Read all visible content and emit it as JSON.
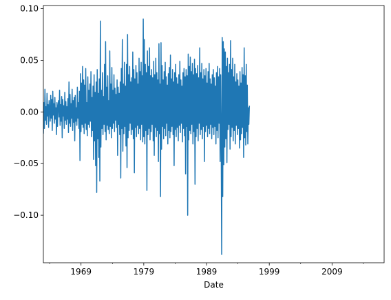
{
  "chart_data": {
    "type": "line",
    "title": "",
    "xlabel": "Date",
    "ylabel": "",
    "x_range": [
      1963.0,
      2017.3
    ],
    "ylim": [
      -0.146,
      0.103
    ],
    "x_ticks": [
      1969,
      1979,
      1989,
      1999,
      2009
    ],
    "x_tick_labels": [
      "1969",
      "1979",
      "1989",
      "1999",
      "2009"
    ],
    "y_ticks": [
      -0.1,
      -0.05,
      0.0,
      0.05,
      0.1
    ],
    "y_tick_labels": [
      "−0.10",
      "−0.05",
      "0.00",
      "0.05",
      "0.10"
    ],
    "grid": false,
    "series": [
      {
        "name": "",
        "color": "#1f77b4",
        "x_start": 1963.0,
        "x_step": 0.08333,
        "values": [
          -0.021,
          0.009,
          -0.016,
          0.022,
          -0.008,
          0.005,
          -0.012,
          0.018,
          -0.004,
          0.007,
          -0.015,
          0.011,
          0.003,
          -0.009,
          0.016,
          -0.006,
          0.012,
          -0.018,
          0.02,
          -0.003,
          0.008,
          -0.011,
          0.014,
          -0.007,
          0.004,
          -0.022,
          0.009,
          -0.014,
          0.006,
          0.011,
          -0.005,
          0.021,
          -0.013,
          0.007,
          -0.009,
          0.015,
          -0.025,
          0.012,
          -0.004,
          0.006,
          -0.016,
          0.019,
          -0.008,
          0.01,
          -0.012,
          0.005,
          -0.007,
          0.013,
          -0.02,
          0.029,
          -0.011,
          0.017,
          -0.014,
          0.008,
          -0.006,
          0.022,
          -0.018,
          0.011,
          -0.01,
          0.014,
          -0.028,
          0.016,
          -0.009,
          0.004,
          -0.013,
          0.024,
          -0.006,
          0.009,
          -0.016,
          0.02,
          -0.047,
          0.037,
          -0.019,
          0.028,
          -0.012,
          0.044,
          -0.015,
          0.031,
          -0.021,
          0.026,
          -0.011,
          0.042,
          -0.017,
          0.009,
          -0.023,
          0.034,
          -0.012,
          0.021,
          -0.015,
          0.027,
          -0.009,
          0.039,
          -0.024,
          0.014,
          -0.018,
          0.025,
          -0.046,
          0.036,
          -0.028,
          0.019,
          -0.052,
          0.029,
          -0.078,
          0.041,
          -0.026,
          0.018,
          -0.044,
          0.032,
          -0.067,
          0.088,
          -0.034,
          0.021,
          -0.016,
          0.038,
          -0.022,
          0.015,
          -0.012,
          0.046,
          -0.019,
          0.068,
          -0.027,
          0.024,
          -0.013,
          0.035,
          -0.017,
          0.011,
          -0.021,
          0.059,
          -0.014,
          0.027,
          -0.025,
          0.043,
          -0.016,
          0.021,
          -0.011,
          0.036,
          -0.019,
          0.023,
          -0.008,
          0.017,
          -0.015,
          0.031,
          -0.042,
          0.024,
          -0.012,
          0.018,
          -0.022,
          0.029,
          -0.064,
          0.042,
          -0.016,
          0.07,
          -0.038,
          0.027,
          -0.021,
          0.048,
          -0.014,
          0.025,
          -0.033,
          0.046,
          -0.054,
          0.075,
          -0.025,
          0.036,
          -0.018,
          0.044,
          -0.011,
          0.029,
          -0.022,
          0.033,
          -0.017,
          0.058,
          -0.026,
          0.041,
          -0.059,
          0.032,
          -0.015,
          0.045,
          -0.024,
          0.038,
          -0.013,
          0.027,
          -0.021,
          0.052,
          -0.016,
          0.039,
          -0.027,
          0.048,
          -0.012,
          0.035,
          -0.029,
          0.09,
          -0.024,
          0.07,
          -0.031,
          0.046,
          -0.018,
          0.038,
          -0.076,
          0.059,
          -0.022,
          0.044,
          -0.016,
          0.062,
          -0.027,
          0.035,
          -0.019,
          0.041,
          -0.012,
          0.033,
          -0.028,
          0.049,
          -0.042,
          0.036,
          -0.015,
          0.052,
          -0.024,
          0.038,
          -0.018,
          0.031,
          -0.048,
          0.066,
          -0.021,
          0.027,
          -0.082,
          0.067,
          -0.036,
          0.045,
          -0.014,
          0.031,
          -0.026,
          0.039,
          -0.016,
          0.048,
          -0.023,
          0.034,
          -0.011,
          0.026,
          -0.031,
          0.037,
          -0.018,
          0.043,
          -0.025,
          0.055,
          -0.019,
          0.032,
          -0.014,
          0.041,
          -0.022,
          0.029,
          -0.052,
          0.038,
          -0.017,
          0.046,
          -0.024,
          0.033,
          -0.015,
          0.027,
          -0.028,
          0.036,
          -0.013,
          0.049,
          -0.02,
          0.031,
          -0.011,
          0.025,
          -0.029,
          0.038,
          -0.016,
          0.042,
          -0.023,
          0.034,
          -0.06,
          0.041,
          -0.014,
          0.035,
          -0.1,
          0.056,
          -0.027,
          0.044,
          -0.018,
          0.053,
          -0.021,
          0.039,
          -0.012,
          0.047,
          -0.031,
          0.036,
          -0.019,
          0.051,
          -0.07,
          0.042,
          -0.024,
          0.037,
          -0.016,
          0.045,
          -0.028,
          0.033,
          -0.011,
          0.062,
          -0.022,
          0.038,
          -0.017,
          0.047,
          -0.026,
          0.032,
          -0.014,
          0.041,
          -0.048,
          0.035,
          -0.019,
          0.042,
          -0.013,
          0.028,
          -0.024,
          0.039,
          -0.016,
          0.047,
          -0.021,
          0.032,
          -0.012,
          0.027,
          -0.026,
          0.036,
          -0.015,
          0.041,
          -0.022,
          0.033,
          -0.014,
          0.025,
          -0.031,
          0.038,
          -0.018,
          0.044,
          -0.025,
          0.034,
          -0.011,
          0.042,
          -0.048,
          0.036,
          -0.021,
          -0.138,
          0.072,
          -0.082,
          0.068,
          -0.051,
          0.061,
          -0.034,
          0.058,
          -0.026,
          0.044,
          -0.049,
          0.052,
          -0.017,
          0.038,
          -0.012,
          0.046,
          -0.036,
          0.069,
          -0.024,
          0.041,
          -0.015,
          0.052,
          -0.028,
          0.034,
          -0.018,
          0.046,
          -0.031,
          0.029,
          -0.013,
          0.037,
          -0.022,
          0.031,
          -0.016,
          0.025,
          -0.035,
          0.039,
          -0.027,
          0.028,
          -0.021,
          0.043,
          -0.015,
          0.036,
          -0.044,
          0.062,
          -0.025,
          0.035,
          -0.032,
          0.046,
          -0.019,
          0.026,
          -0.031,
          0.004,
          -0.012,
          0.006
        ]
      }
    ]
  }
}
